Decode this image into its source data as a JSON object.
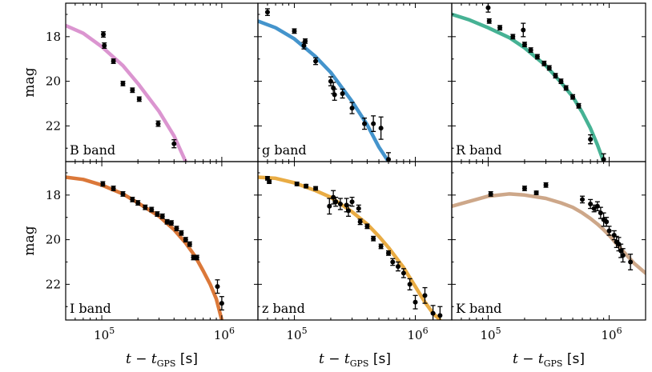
{
  "chart_data": {
    "type": "scatter",
    "x_scale": "log",
    "xlim": [
      50000,
      2000000
    ],
    "ylim_inverted": [
      16.5,
      23.6
    ],
    "x_ticks": [
      {
        "value": 100000,
        "base": "10",
        "exp": "5"
      },
      {
        "value": 1000000,
        "base": "10",
        "exp": "6"
      }
    ],
    "y_ticks": [
      18,
      20,
      22
    ],
    "xlabel": {
      "main": "t − t",
      "sub": "GPS",
      "unit": "[s]"
    },
    "ylabel": "mag",
    "panels": [
      {
        "band": "B band",
        "color": "#d98fcd",
        "model": {
          "x": [
            50000,
            70000,
            100000,
            150000,
            200000,
            300000,
            400000,
            500000
          ],
          "y": [
            17.5,
            17.85,
            18.45,
            19.3,
            20.1,
            21.35,
            22.45,
            23.6
          ]
        },
        "points": [
          {
            "x": 103000,
            "y": 17.9,
            "err": 0.12
          },
          {
            "x": 105000,
            "y": 18.4,
            "err": 0.12
          },
          {
            "x": 125000,
            "y": 19.1,
            "err": 0.1
          },
          {
            "x": 150000,
            "y": 20.1,
            "err": 0.1
          },
          {
            "x": 180000,
            "y": 20.4,
            "err": 0.1
          },
          {
            "x": 205000,
            "y": 20.8,
            "err": 0.1
          },
          {
            "x": 295000,
            "y": 21.9,
            "err": 0.12
          },
          {
            "x": 400000,
            "y": 22.8,
            "err": 0.18
          }
        ]
      },
      {
        "band": "g band",
        "color": "#3a8ec9",
        "model": {
          "x": [
            50000,
            70000,
            100000,
            150000,
            200000,
            300000,
            400000,
            500000,
            600000
          ],
          "y": [
            17.3,
            17.6,
            18.1,
            18.9,
            19.6,
            20.9,
            21.95,
            22.95,
            23.6
          ]
        },
        "points": [
          {
            "x": 60000,
            "y": 16.9,
            "err": 0.15
          },
          {
            "x": 100000,
            "y": 17.75,
            "err": 0.1
          },
          {
            "x": 120000,
            "y": 18.4,
            "err": 0.15
          },
          {
            "x": 123000,
            "y": 18.2,
            "err": 0.1
          },
          {
            "x": 150000,
            "y": 19.1,
            "err": 0.15
          },
          {
            "x": 200000,
            "y": 20.0,
            "err": 0.2
          },
          {
            "x": 210000,
            "y": 20.3,
            "err": 0.25
          },
          {
            "x": 215000,
            "y": 20.6,
            "err": 0.25
          },
          {
            "x": 250000,
            "y": 20.55,
            "err": 0.2
          },
          {
            "x": 300000,
            "y": 21.2,
            "err": 0.25
          },
          {
            "x": 380000,
            "y": 21.9,
            "err": 0.25
          },
          {
            "x": 450000,
            "y": 21.9,
            "err": 0.35
          },
          {
            "x": 520000,
            "y": 22.1,
            "err": 0.5
          },
          {
            "x": 600000,
            "y": 23.5,
            "err": 0.3
          }
        ]
      },
      {
        "band": "R band",
        "color": "#3cae8e",
        "model": {
          "x": [
            50000,
            70000,
            100000,
            150000,
            200000,
            300000,
            400000,
            500000,
            600000,
            700000,
            800000,
            900000
          ],
          "y": [
            17.0,
            17.25,
            17.6,
            18.05,
            18.5,
            19.3,
            20.05,
            20.7,
            21.4,
            22.1,
            22.85,
            23.6
          ]
        },
        "points": [
          {
            "x": 100000,
            "y": 16.7,
            "err": 0.2
          },
          {
            "x": 102000,
            "y": 17.3,
            "err": 0.1
          },
          {
            "x": 125000,
            "y": 17.6,
            "err": 0.1
          },
          {
            "x": 160000,
            "y": 18.0,
            "err": 0.1
          },
          {
            "x": 195000,
            "y": 17.7,
            "err": 0.3
          },
          {
            "x": 200000,
            "y": 18.35,
            "err": 0.1
          },
          {
            "x": 225000,
            "y": 18.6,
            "err": 0.1
          },
          {
            "x": 255000,
            "y": 18.9,
            "err": 0.1
          },
          {
            "x": 290000,
            "y": 19.2,
            "err": 0.1
          },
          {
            "x": 320000,
            "y": 19.4,
            "err": 0.1
          },
          {
            "x": 360000,
            "y": 19.75,
            "err": 0.1
          },
          {
            "x": 400000,
            "y": 20.0,
            "err": 0.1
          },
          {
            "x": 440000,
            "y": 20.3,
            "err": 0.1
          },
          {
            "x": 500000,
            "y": 20.7,
            "err": 0.1
          },
          {
            "x": 560000,
            "y": 21.1,
            "err": 0.1
          },
          {
            "x": 700000,
            "y": 22.6,
            "err": 0.2
          },
          {
            "x": 900000,
            "y": 23.5,
            "err": 0.25
          }
        ]
      },
      {
        "band": "I band",
        "color": "#d9712e",
        "model": {
          "x": [
            50000,
            70000,
            100000,
            150000,
            200000,
            300000,
            400000,
            500000,
            600000,
            700000,
            800000,
            900000,
            1000000
          ],
          "y": [
            17.2,
            17.3,
            17.55,
            17.95,
            18.35,
            18.95,
            19.55,
            20.15,
            20.75,
            21.4,
            22.0,
            22.65,
            23.6
          ]
        },
        "points": [
          {
            "x": 102000,
            "y": 17.5,
            "err": 0.1
          },
          {
            "x": 125000,
            "y": 17.7,
            "err": 0.1
          },
          {
            "x": 150000,
            "y": 17.95,
            "err": 0.1
          },
          {
            "x": 180000,
            "y": 18.2,
            "err": 0.1
          },
          {
            "x": 200000,
            "y": 18.35,
            "err": 0.1
          },
          {
            "x": 230000,
            "y": 18.55,
            "err": 0.1
          },
          {
            "x": 260000,
            "y": 18.65,
            "err": 0.1
          },
          {
            "x": 290000,
            "y": 18.85,
            "err": 0.1
          },
          {
            "x": 320000,
            "y": 18.95,
            "err": 0.1
          },
          {
            "x": 350000,
            "y": 19.2,
            "err": 0.1
          },
          {
            "x": 380000,
            "y": 19.25,
            "err": 0.1
          },
          {
            "x": 420000,
            "y": 19.5,
            "err": 0.1
          },
          {
            "x": 460000,
            "y": 19.7,
            "err": 0.1
          },
          {
            "x": 500000,
            "y": 20.0,
            "err": 0.1
          },
          {
            "x": 540000,
            "y": 20.2,
            "err": 0.1
          },
          {
            "x": 580000,
            "y": 20.8,
            "err": 0.1
          },
          {
            "x": 620000,
            "y": 20.8,
            "err": 0.1
          },
          {
            "x": 920000,
            "y": 22.1,
            "err": 0.3
          },
          {
            "x": 1000000,
            "y": 22.85,
            "err": 0.3
          }
        ]
      },
      {
        "band": "z band",
        "color": "#e8a83a",
        "model": {
          "x": [
            50000,
            70000,
            100000,
            150000,
            200000,
            300000,
            400000,
            500000,
            600000,
            800000,
            1000000,
            1200000,
            1400000,
            1600000
          ],
          "y": [
            17.2,
            17.25,
            17.45,
            17.8,
            18.1,
            18.75,
            19.3,
            19.85,
            20.35,
            21.25,
            22.1,
            22.8,
            23.3,
            23.6
          ]
        },
        "points": [
          {
            "x": 60000,
            "y": 17.25,
            "err": 0.08
          },
          {
            "x": 62000,
            "y": 17.4,
            "err": 0.08
          },
          {
            "x": 105000,
            "y": 17.5,
            "err": 0.08
          },
          {
            "x": 125000,
            "y": 17.6,
            "err": 0.08
          },
          {
            "x": 150000,
            "y": 17.7,
            "err": 0.08
          },
          {
            "x": 195000,
            "y": 18.5,
            "err": 0.35
          },
          {
            "x": 210000,
            "y": 18.1,
            "err": 0.3
          },
          {
            "x": 220000,
            "y": 18.3,
            "err": 0.2
          },
          {
            "x": 240000,
            "y": 18.4,
            "err": 0.25
          },
          {
            "x": 270000,
            "y": 18.45,
            "err": 0.3
          },
          {
            "x": 280000,
            "y": 18.7,
            "err": 0.25
          },
          {
            "x": 300000,
            "y": 18.3,
            "err": 0.2
          },
          {
            "x": 340000,
            "y": 18.6,
            "err": 0.15
          },
          {
            "x": 350000,
            "y": 19.2,
            "err": 0.12
          },
          {
            "x": 400000,
            "y": 19.4,
            "err": 0.1
          },
          {
            "x": 450000,
            "y": 19.95,
            "err": 0.1
          },
          {
            "x": 520000,
            "y": 20.3,
            "err": 0.1
          },
          {
            "x": 600000,
            "y": 20.6,
            "err": 0.1
          },
          {
            "x": 650000,
            "y": 21.0,
            "err": 0.15
          },
          {
            "x": 720000,
            "y": 21.2,
            "err": 0.2
          },
          {
            "x": 800000,
            "y": 21.5,
            "err": 0.2
          },
          {
            "x": 900000,
            "y": 22.0,
            "err": 0.25
          },
          {
            "x": 1000000,
            "y": 22.8,
            "err": 0.3
          },
          {
            "x": 1200000,
            "y": 22.5,
            "err": 0.35
          },
          {
            "x": 1400000,
            "y": 23.3,
            "err": 0.35
          },
          {
            "x": 1600000,
            "y": 23.4,
            "err": 0.4
          }
        ]
      },
      {
        "band": "K band",
        "color": "#caa283",
        "model": {
          "x": [
            50000,
            100000,
            150000,
            200000,
            300000,
            400000,
            500000,
            600000,
            700000,
            800000,
            900000,
            1000000,
            1200000,
            1400000,
            1600000,
            2000000
          ],
          "y": [
            18.5,
            18.05,
            17.95,
            18.0,
            18.15,
            18.35,
            18.55,
            18.8,
            19.05,
            19.3,
            19.55,
            19.8,
            20.3,
            20.7,
            21.05,
            21.5
          ]
        },
        "points": [
          {
            "x": 105000,
            "y": 17.95,
            "err": 0.1
          },
          {
            "x": 200000,
            "y": 17.7,
            "err": 0.1
          },
          {
            "x": 250000,
            "y": 17.9,
            "err": 0.08
          },
          {
            "x": 300000,
            "y": 17.55,
            "err": 0.1
          },
          {
            "x": 600000,
            "y": 18.2,
            "err": 0.15
          },
          {
            "x": 700000,
            "y": 18.4,
            "err": 0.2
          },
          {
            "x": 750000,
            "y": 18.6,
            "err": 0.15
          },
          {
            "x": 800000,
            "y": 18.5,
            "err": 0.2
          },
          {
            "x": 850000,
            "y": 18.8,
            "err": 0.25
          },
          {
            "x": 900000,
            "y": 19.1,
            "err": 0.3
          },
          {
            "x": 950000,
            "y": 19.2,
            "err": 0.2
          },
          {
            "x": 1000000,
            "y": 19.6,
            "err": 0.2
          },
          {
            "x": 1100000,
            "y": 19.8,
            "err": 0.2
          },
          {
            "x": 1150000,
            "y": 20.1,
            "err": 0.25
          },
          {
            "x": 1200000,
            "y": 20.2,
            "err": 0.3
          },
          {
            "x": 1250000,
            "y": 20.5,
            "err": 0.3
          },
          {
            "x": 1300000,
            "y": 20.7,
            "err": 0.3
          },
          {
            "x": 1500000,
            "y": 21.0,
            "err": 0.35
          }
        ]
      }
    ]
  }
}
